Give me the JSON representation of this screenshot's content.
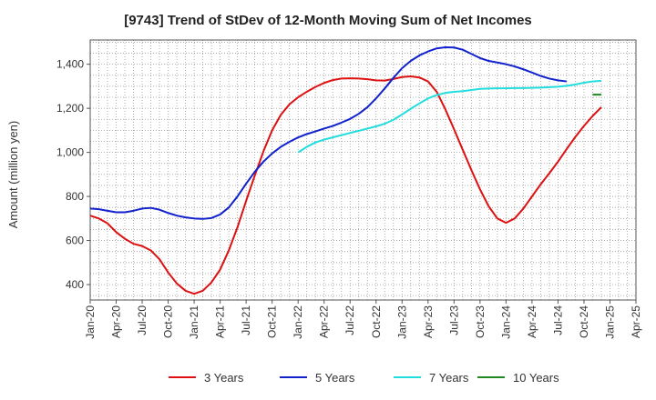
{
  "chart_data": {
    "type": "line",
    "title": "[9743]  Trend of StDev of 12-Month Moving Sum of Net Incomes",
    "ylabel": "Amount (million yen)",
    "xlabel": "",
    "ylim": [
      330,
      1510
    ],
    "yticks": [
      400,
      600,
      800,
      1000,
      1200,
      1400
    ],
    "ytick_labels": [
      "400",
      "600",
      "800",
      "1,000",
      "1,200",
      "1,400"
    ],
    "x_range": [
      "2020-01",
      "2025-04"
    ],
    "xtick_labels": [
      "Jan-20",
      "Apr-20",
      "Jul-20",
      "Oct-20",
      "Jan-21",
      "Apr-21",
      "Jul-21",
      "Oct-21",
      "Jan-22",
      "Apr-22",
      "Jul-22",
      "Oct-22",
      "Jan-23",
      "Apr-23",
      "Jul-23",
      "Oct-23",
      "Jan-24",
      "Apr-24",
      "Jul-24",
      "Oct-24",
      "Jan-25",
      "Apr-25"
    ],
    "grid": true,
    "legend_position": "bottom",
    "series": [
      {
        "name": "3 Years",
        "color": "#dd1111",
        "points": [
          [
            "2020-01",
            713
          ],
          [
            "2020-02",
            700
          ],
          [
            "2020-03",
            678
          ],
          [
            "2020-04",
            638
          ],
          [
            "2020-05",
            608
          ],
          [
            "2020-06",
            585
          ],
          [
            "2020-07",
            575
          ],
          [
            "2020-08",
            555
          ],
          [
            "2020-09",
            515
          ],
          [
            "2020-10",
            455
          ],
          [
            "2020-11",
            405
          ],
          [
            "2020-12",
            372
          ],
          [
            "2021-01",
            358
          ],
          [
            "2021-02",
            372
          ],
          [
            "2021-03",
            410
          ],
          [
            "2021-04",
            468
          ],
          [
            "2021-05",
            555
          ],
          [
            "2021-06",
            660
          ],
          [
            "2021-07",
            780
          ],
          [
            "2021-08",
            895
          ],
          [
            "2021-09",
            1005
          ],
          [
            "2021-10",
            1100
          ],
          [
            "2021-11",
            1170
          ],
          [
            "2021-12",
            1218
          ],
          [
            "2022-01",
            1250
          ],
          [
            "2022-02",
            1275
          ],
          [
            "2022-03",
            1297
          ],
          [
            "2022-04",
            1315
          ],
          [
            "2022-05",
            1328
          ],
          [
            "2022-06",
            1335
          ],
          [
            "2022-07",
            1336
          ],
          [
            "2022-08",
            1335
          ],
          [
            "2022-09",
            1332
          ],
          [
            "2022-10",
            1327
          ],
          [
            "2022-11",
            1326
          ],
          [
            "2022-12",
            1333
          ],
          [
            "2023-01",
            1342
          ],
          [
            "2023-02",
            1345
          ],
          [
            "2023-03",
            1340
          ],
          [
            "2023-04",
            1322
          ],
          [
            "2023-05",
            1275
          ],
          [
            "2023-06",
            1195
          ],
          [
            "2023-07",
            1105
          ],
          [
            "2023-08",
            1012
          ],
          [
            "2023-09",
            920
          ],
          [
            "2023-10",
            832
          ],
          [
            "2023-11",
            755
          ],
          [
            "2023-12",
            700
          ],
          [
            "2024-01",
            680
          ],
          [
            "2024-02",
            700
          ],
          [
            "2024-03",
            745
          ],
          [
            "2024-04",
            800
          ],
          [
            "2024-05",
            855
          ],
          [
            "2024-06",
            905
          ],
          [
            "2024-07",
            958
          ],
          [
            "2024-08",
            1015
          ],
          [
            "2024-09",
            1070
          ],
          [
            "2024-10",
            1120
          ],
          [
            "2024-11",
            1165
          ],
          [
            "2024-12",
            1205
          ]
        ]
      },
      {
        "name": "5 Years",
        "color": "#1122cc",
        "points": [
          [
            "2020-01",
            745
          ],
          [
            "2020-02",
            742
          ],
          [
            "2020-03",
            735
          ],
          [
            "2020-04",
            728
          ],
          [
            "2020-05",
            728
          ],
          [
            "2020-06",
            735
          ],
          [
            "2020-07",
            745
          ],
          [
            "2020-08",
            748
          ],
          [
            "2020-09",
            740
          ],
          [
            "2020-10",
            725
          ],
          [
            "2020-11",
            713
          ],
          [
            "2020-12",
            705
          ],
          [
            "2021-01",
            700
          ],
          [
            "2021-02",
            698
          ],
          [
            "2021-03",
            702
          ],
          [
            "2021-04",
            718
          ],
          [
            "2021-05",
            750
          ],
          [
            "2021-06",
            800
          ],
          [
            "2021-07",
            858
          ],
          [
            "2021-08",
            912
          ],
          [
            "2021-09",
            958
          ],
          [
            "2021-10",
            995
          ],
          [
            "2021-11",
            1025
          ],
          [
            "2021-12",
            1048
          ],
          [
            "2022-01",
            1068
          ],
          [
            "2022-02",
            1083
          ],
          [
            "2022-03",
            1095
          ],
          [
            "2022-04",
            1108
          ],
          [
            "2022-05",
            1120
          ],
          [
            "2022-06",
            1135
          ],
          [
            "2022-07",
            1152
          ],
          [
            "2022-08",
            1175
          ],
          [
            "2022-09",
            1205
          ],
          [
            "2022-10",
            1245
          ],
          [
            "2022-11",
            1290
          ],
          [
            "2022-12",
            1338
          ],
          [
            "2023-01",
            1382
          ],
          [
            "2023-02",
            1415
          ],
          [
            "2023-03",
            1440
          ],
          [
            "2023-04",
            1458
          ],
          [
            "2023-05",
            1472
          ],
          [
            "2023-06",
            1477
          ],
          [
            "2023-07",
            1476
          ],
          [
            "2023-08",
            1466
          ],
          [
            "2023-09",
            1447
          ],
          [
            "2023-10",
            1428
          ],
          [
            "2023-11",
            1415
          ],
          [
            "2023-12",
            1408
          ],
          [
            "2024-01",
            1400
          ],
          [
            "2024-02",
            1390
          ],
          [
            "2024-03",
            1377
          ],
          [
            "2024-04",
            1362
          ],
          [
            "2024-05",
            1347
          ],
          [
            "2024-06",
            1335
          ],
          [
            "2024-07",
            1327
          ],
          [
            "2024-08",
            1322
          ]
        ]
      },
      {
        "name": "7 Years",
        "color": "#22dddd",
        "points": [
          [
            "2022-01",
            1000
          ],
          [
            "2022-02",
            1025
          ],
          [
            "2022-03",
            1045
          ],
          [
            "2022-04",
            1058
          ],
          [
            "2022-05",
            1068
          ],
          [
            "2022-06",
            1078
          ],
          [
            "2022-07",
            1088
          ],
          [
            "2022-08",
            1098
          ],
          [
            "2022-09",
            1108
          ],
          [
            "2022-10",
            1118
          ],
          [
            "2022-11",
            1130
          ],
          [
            "2022-12",
            1148
          ],
          [
            "2023-01",
            1172
          ],
          [
            "2023-02",
            1198
          ],
          [
            "2023-03",
            1222
          ],
          [
            "2023-04",
            1245
          ],
          [
            "2023-05",
            1260
          ],
          [
            "2023-06",
            1270
          ],
          [
            "2023-07",
            1275
          ],
          [
            "2023-08",
            1278
          ],
          [
            "2023-09",
            1283
          ],
          [
            "2023-10",
            1288
          ],
          [
            "2023-11",
            1290
          ],
          [
            "2023-12",
            1291
          ],
          [
            "2024-01",
            1291
          ],
          [
            "2024-02",
            1292
          ],
          [
            "2024-03",
            1292
          ],
          [
            "2024-04",
            1293
          ],
          [
            "2024-05",
            1294
          ],
          [
            "2024-06",
            1296
          ],
          [
            "2024-07",
            1298
          ],
          [
            "2024-08",
            1302
          ],
          [
            "2024-09",
            1308
          ],
          [
            "2024-10",
            1316
          ],
          [
            "2024-11",
            1322
          ],
          [
            "2024-12",
            1325
          ]
        ]
      },
      {
        "name": "10 Years",
        "color": "#228822",
        "points": [
          [
            "2024-11",
            1262
          ],
          [
            "2024-12",
            1262
          ]
        ]
      }
    ]
  }
}
